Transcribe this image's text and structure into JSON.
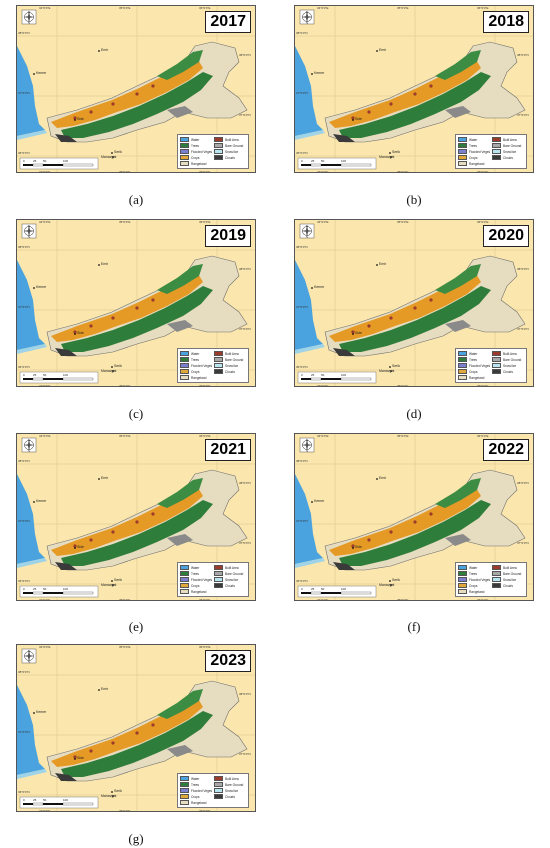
{
  "figure": {
    "panels": [
      {
        "year": "2017",
        "caption": "(a)"
      },
      {
        "year": "2018",
        "caption": "(b)"
      },
      {
        "year": "2019",
        "caption": "(c)"
      },
      {
        "year": "2020",
        "caption": "(d)"
      },
      {
        "year": "2021",
        "caption": "(e)"
      },
      {
        "year": "2022",
        "caption": "(f)"
      },
      {
        "year": "2023",
        "caption": "(g)"
      }
    ],
    "legend": [
      {
        "label": "Water",
        "color": "#4aa3df"
      },
      {
        "label": "Built Area",
        "color": "#9c3a2b"
      },
      {
        "label": "Trees",
        "color": "#2f7d3a"
      },
      {
        "label": "Bare Ground",
        "color": "#a8a8a8"
      },
      {
        "label": "Flooded Vegetation",
        "color": "#7b7fcf"
      },
      {
        "label": "Snow/Ice",
        "color": "#b8e6f0"
      },
      {
        "label": "Crops",
        "color": "#e0a83a"
      },
      {
        "label": "Clouds",
        "color": "#3a3a3a"
      },
      {
        "label": "Rangeland",
        "color": "#e6dcc0"
      }
    ],
    "places": {
      "a": "Emir",
      "b": "Kemer",
      "c": "Side",
      "d": "Serik",
      "e": "Manavgat"
    },
    "compass": {
      "n": "N",
      "s": "S"
    },
    "scale_ticks": [
      "0",
      "25",
      "50",
      "100"
    ],
    "coords_top": [
      "34°0'0\"E",
      "35°0'0\"E",
      "36°0'0\"E"
    ],
    "coords_side": [
      "38°0'0\"N",
      "37°0'0\"N",
      "36°0'0\"N"
    ]
  }
}
